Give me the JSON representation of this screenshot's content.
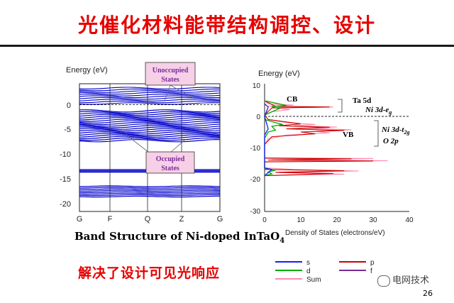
{
  "title": "光催化材料能带结构调控、设计",
  "band": {
    "ylabel": "Energy (eV)",
    "yticks": [
      "0",
      "-5",
      "-10",
      "-15",
      "-20"
    ],
    "xticks": [
      "G",
      "F",
      "Q",
      "Z",
      "G"
    ],
    "unoccupied": [
      "Unoccupied",
      "States"
    ],
    "occupied": [
      "Occupied",
      "States"
    ]
  },
  "caption": {
    "main": "Band Structure of Ni-doped InTaO",
    "sub": "4"
  },
  "dos": {
    "ylabel": "Energy (eV)",
    "yticks": [
      "10",
      "0",
      "-10",
      "-20",
      "-30"
    ],
    "xticks": [
      "0",
      "10",
      "20",
      "30",
      "40"
    ],
    "xlabel": "Density of States (electrons/eV)",
    "cb": "CB",
    "vb": "VB",
    "ta": "Ta 5d",
    "ni_eg": "Ni 3d-e",
    "ni_eg_sub": "g",
    "ni_t2g": "Ni 3d-t",
    "ni_t2g_sub": "2g",
    "o2p": "O 2p",
    "legend": [
      "s",
      "p",
      "d",
      "f",
      "Sum"
    ]
  },
  "colors": {
    "s": "#1a1aff",
    "p": "#cc0000",
    "d": "#00aa00",
    "f": "#7a2a9a",
    "sum": "#ff88aa",
    "band": "#0000cc",
    "title": "#e60000"
  },
  "note": "解决了设计可见光响应",
  "watermark": "电网技术",
  "page": "26"
}
